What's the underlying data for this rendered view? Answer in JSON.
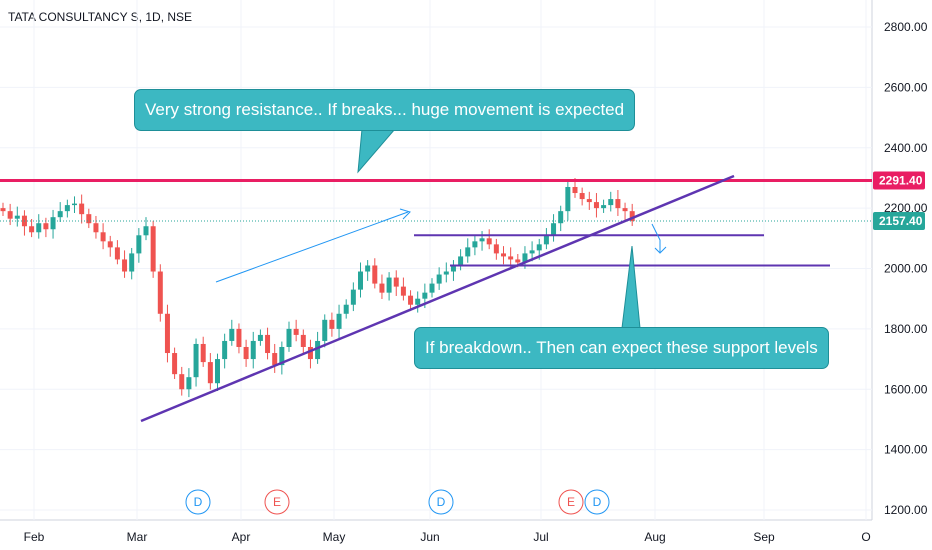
{
  "header": {
    "title": "TATA CONSULTANCY S, 1D, NSE"
  },
  "colors": {
    "up": "#26a69a",
    "down": "#ef5350",
    "resistance": "#e91e63",
    "trendline": "#5e35b1",
    "arrow": "#2196f3",
    "callout": "#3cb8c2",
    "current_price": "#26a69a"
  },
  "annotations": {
    "resistance_note": "Very strong resistance.. If breaks... huge movement is expected",
    "support_note": "If breakdown.. Then can expect these support levels"
  },
  "price_tags": {
    "resistance": "2291.40",
    "current": "2157.40"
  },
  "events": [
    {
      "label": "D",
      "month": "Mar"
    },
    {
      "label": "E",
      "month": "Apr"
    },
    {
      "label": "D",
      "month": "Jun"
    },
    {
      "label": "E",
      "month": "Jul"
    },
    {
      "label": "D",
      "month": "Jul"
    }
  ],
  "chart_data": {
    "type": "candlestick",
    "title": "TATA CONSULTANCY S, 1D, NSE",
    "x_tick_labels": [
      "Feb",
      "Mar",
      "Apr",
      "May",
      "Jun",
      "Jul",
      "Aug",
      "Sep",
      "O"
    ],
    "y_tick_labels": [
      "2800.00",
      "2600.00",
      "2400.00",
      "2200.00",
      "2000.00",
      "1800.00",
      "1600.00",
      "1400.00",
      "1200.00"
    ],
    "ylim": [
      1180,
      2900
    ],
    "resistance_level": 2291.4,
    "last_price": 2157.4,
    "support_levels": [
      2110,
      2010
    ],
    "close_series_approx": [
      2190,
      2165,
      2175,
      2140,
      2120,
      2150,
      2130,
      2170,
      2190,
      2210,
      2215,
      2180,
      2150,
      2120,
      2090,
      2070,
      2030,
      1990,
      2050,
      2110,
      2140,
      1990,
      1850,
      1720,
      1650,
      1600,
      1640,
      1750,
      1690,
      1620,
      1700,
      1760,
      1800,
      1740,
      1700,
      1760,
      1780,
      1720,
      1680,
      1740,
      1800,
      1780,
      1740,
      1700,
      1760,
      1830,
      1800,
      1850,
      1880,
      1930,
      1990,
      2010,
      1950,
      1920,
      1970,
      1940,
      1910,
      1880,
      1900,
      1920,
      1950,
      1980,
      1990,
      2010,
      2040,
      2070,
      2090,
      2100,
      2080,
      2050,
      2040,
      2030,
      2020,
      2050,
      2060,
      2080,
      2110,
      2150,
      2190,
      2270,
      2250,
      2230,
      2220,
      2200,
      2210,
      2230,
      2200,
      2190,
      2157
    ]
  }
}
